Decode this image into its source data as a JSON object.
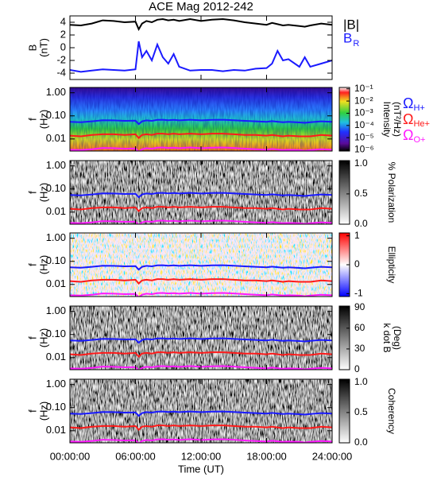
{
  "chart_data": {
    "title": "ACE Mag 2012-242",
    "xlabel": "Time (UT)",
    "xlim": [
      0,
      24
    ],
    "xticks": [
      {
        "value": 0,
        "label": "00:00:00"
      },
      {
        "value": 6,
        "label": "06:00:00"
      },
      {
        "value": 12,
        "label": "12:00:00"
      },
      {
        "value": 18,
        "label": "18:00:00"
      },
      {
        "value": 24,
        "label": "24:00:00"
      }
    ],
    "x": [
      0,
      1,
      2,
      3,
      4,
      5,
      6,
      6.3,
      6.6,
      7,
      7.5,
      8,
      8.5,
      9,
      9.5,
      10,
      11,
      12,
      13,
      14,
      15,
      16,
      17,
      18,
      18.5,
      19,
      19.5,
      20,
      21,
      21.5,
      22,
      23,
      24
    ],
    "frequency_lines": [
      {
        "name": "Ω",
        "subscript": "H+",
        "color": "#1a1aff",
        "values": [
          0.055,
          0.053,
          0.058,
          0.065,
          0.064,
          0.061,
          0.062,
          0.044,
          0.058,
          0.064,
          0.061,
          0.067,
          0.068,
          0.065,
          0.067,
          0.064,
          0.068,
          0.064,
          0.067,
          0.068,
          0.065,
          0.061,
          0.058,
          0.055,
          0.059,
          0.056,
          0.053,
          0.055,
          0.052,
          0.05,
          0.053,
          0.058,
          0.055
        ]
      },
      {
        "name": "Ω",
        "subscript": "He+",
        "color": "#ff1a1a",
        "values": [
          0.014,
          0.013,
          0.015,
          0.016,
          0.016,
          0.015,
          0.016,
          0.011,
          0.015,
          0.016,
          0.015,
          0.017,
          0.017,
          0.016,
          0.017,
          0.016,
          0.017,
          0.016,
          0.017,
          0.017,
          0.016,
          0.015,
          0.015,
          0.014,
          0.015,
          0.014,
          0.013,
          0.014,
          0.013,
          0.013,
          0.013,
          0.015,
          0.014
        ]
      },
      {
        "name": "Ω",
        "subscript": "O+",
        "color": "#ff1aff",
        "values": [
          0.0034,
          0.0033,
          0.0036,
          0.0041,
          0.004,
          0.0038,
          0.0039,
          0.0028,
          0.0036,
          0.004,
          0.0038,
          0.0042,
          0.0043,
          0.0041,
          0.0042,
          0.004,
          0.0043,
          0.004,
          0.0042,
          0.0043,
          0.0041,
          0.0038,
          0.0036,
          0.0034,
          0.0037,
          0.0035,
          0.0033,
          0.0034,
          0.0033,
          0.0031,
          0.0033,
          0.0036,
          0.0034
        ]
      }
    ],
    "panels": [
      {
        "type": "line",
        "ylabel": [
          "B",
          "(nT)"
        ],
        "ylim": [
          -5,
          5
        ],
        "yticks": [
          4,
          2,
          0,
          -2,
          -4
        ],
        "series": [
          {
            "name": "|B|",
            "color": "#000000",
            "values": [
              3.6,
              3.5,
              3.8,
              4.3,
              4.2,
              4.0,
              4.1,
              2.9,
              3.8,
              4.2,
              4.0,
              4.4,
              4.5,
              4.3,
              4.4,
              4.2,
              4.5,
              4.2,
              4.4,
              4.5,
              4.3,
              4.0,
              3.8,
              3.6,
              3.9,
              3.7,
              3.5,
              3.6,
              3.4,
              3.3,
              3.5,
              3.8,
              3.6
            ]
          },
          {
            "name": "B",
            "subscript": "R",
            "color": "#1a1aff",
            "values": [
              -3.5,
              -3.8,
              -3.6,
              -3.4,
              -3.5,
              -3.6,
              -3.4,
              1.0,
              -1.5,
              -0.5,
              -2.0,
              0.5,
              -1.5,
              -2.5,
              -1.0,
              -3.0,
              -3.6,
              -3.5,
              -3.5,
              -3.7,
              -3.5,
              -3.6,
              -3.3,
              -3.2,
              -2.5,
              -0.5,
              -2.0,
              -1.8,
              -3.0,
              -1.5,
              -3.0,
              -2.5,
              -2.0
            ]
          }
        ]
      },
      {
        "type": "spectrogram",
        "colormap": "rainbow",
        "ylabel": [
          "f",
          "(Hz)"
        ],
        "ylim": [
          0.003,
          1.7
        ],
        "log_y": true,
        "yticks": [
          {
            "value": 1,
            "label": "1.00"
          },
          {
            "value": 0.1,
            "label": "0.10"
          },
          {
            "value": 0.01,
            "label": "0.01"
          }
        ],
        "colorbar": {
          "label": [
            "Intensity",
            "(nT²/Hz)"
          ],
          "lim": [
            8e-07,
            0.13
          ],
          "log": true,
          "ticks": [
            {
              "value": 0.1,
              "label": "10⁻¹"
            },
            {
              "value": 0.01,
              "label": "10⁻²"
            },
            {
              "value": 0.001,
              "label": "10⁻³"
            },
            {
              "value": 0.0001,
              "label": "10⁻⁴"
            },
            {
              "value": 1e-05,
              "label": "10⁻⁵"
            },
            {
              "value": 1e-06,
              "label": "10⁻⁶"
            }
          ]
        },
        "legend": true
      },
      {
        "type": "spectrogram",
        "colormap": "gray",
        "ylabel": [
          "f",
          "(Hz)"
        ],
        "ylim": [
          0.003,
          1.7
        ],
        "log_y": true,
        "yticks": [
          {
            "value": 1,
            "label": "1.00"
          },
          {
            "value": 0.1,
            "label": "0.10"
          },
          {
            "value": 0.01,
            "label": "0.01"
          }
        ],
        "colorbar": {
          "label": [
            "% Polarization"
          ],
          "lim": [
            0,
            1.05
          ],
          "ticks": [
            {
              "value": 1,
              "label": "1.0"
            },
            {
              "value": 0.5,
              "label": "0.5"
            },
            {
              "value": 0,
              "label": "0.0"
            }
          ]
        }
      },
      {
        "type": "spectrogram",
        "colormap": "bwr",
        "ylabel": [
          "f",
          "(Hz)"
        ],
        "ylim": [
          0.003,
          1.7
        ],
        "log_y": true,
        "yticks": [
          {
            "value": 1,
            "label": "1.00"
          },
          {
            "value": 0.1,
            "label": "0.10"
          },
          {
            "value": 0.01,
            "label": "0.01"
          }
        ],
        "colorbar": {
          "label": [
            "Ellipticity"
          ],
          "lim": [
            -1.1,
            1.1
          ],
          "ticks": [
            1,
            0,
            -1
          ]
        }
      },
      {
        "type": "spectrogram",
        "colormap": "gray",
        "ylabel": [
          "f",
          "(Hz)"
        ],
        "ylim": [
          0.003,
          1.7
        ],
        "log_y": true,
        "yticks": [
          {
            "value": 1,
            "label": "1.00"
          },
          {
            "value": 0.1,
            "label": "0.10"
          },
          {
            "value": 0.01,
            "label": "0.01"
          }
        ],
        "colorbar": {
          "label": [
            "k dot B",
            "(Deg)"
          ],
          "lim": [
            0,
            92
          ],
          "ticks": [
            90,
            60,
            30,
            0
          ]
        }
      },
      {
        "type": "spectrogram",
        "colormap": "gray",
        "ylabel": [
          "f",
          "(Hz)"
        ],
        "ylim": [
          0.003,
          1.7
        ],
        "log_y": true,
        "yticks": [
          {
            "value": 1,
            "label": "1.00"
          },
          {
            "value": 0.1,
            "label": "0.10"
          },
          {
            "value": 0.01,
            "label": "0.01"
          }
        ],
        "colorbar": {
          "label": [
            "Coherency"
          ],
          "lim": [
            0,
            1.05
          ],
          "ticks": [
            {
              "value": 1,
              "label": "1.0"
            },
            {
              "value": 0.5,
              "label": "0.5"
            },
            {
              "value": 0,
              "label": "0.0"
            }
          ]
        }
      }
    ]
  }
}
